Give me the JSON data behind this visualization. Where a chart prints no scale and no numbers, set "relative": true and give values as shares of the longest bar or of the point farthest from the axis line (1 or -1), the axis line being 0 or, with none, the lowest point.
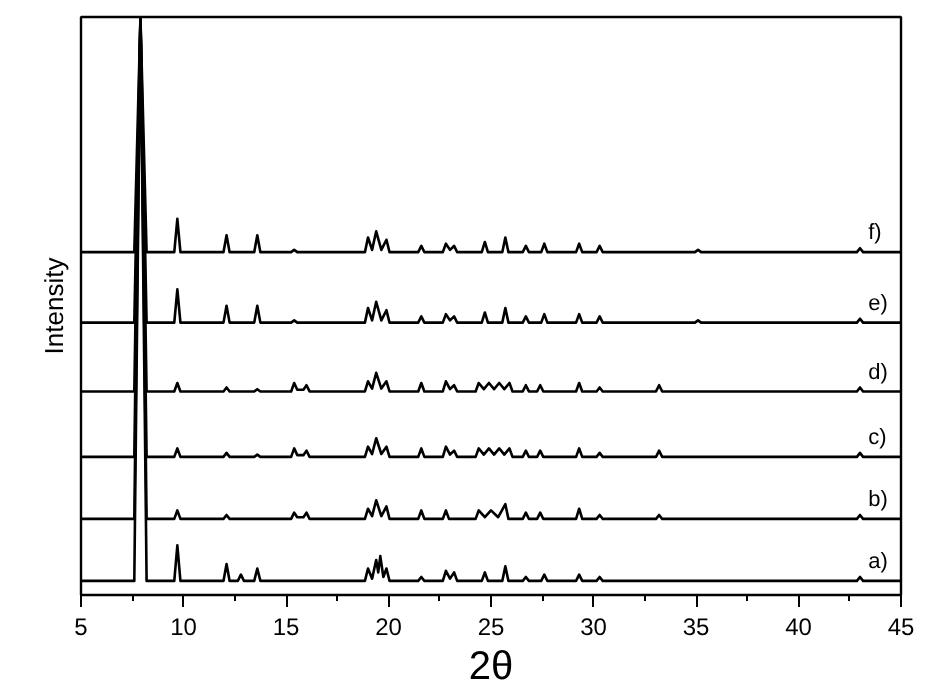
{
  "chart_data": {
    "type": "line",
    "relative": true,
    "xlabel": "2θ",
    "ylabel": "Intensity",
    "xlim": [
      5,
      45
    ],
    "xticks": [
      5,
      10,
      15,
      20,
      25,
      30,
      35,
      40,
      45
    ],
    "grid": false,
    "marker": "none",
    "line_style": "solid",
    "series": [
      {
        "name": "a)",
        "color": "#000000",
        "x": [
          5,
          7.6,
          7.9,
          8.2,
          9.55,
          9.7,
          9.85,
          11.95,
          12.1,
          12.25,
          12.65,
          12.8,
          12.95,
          13.45,
          13.6,
          13.75,
          18.85,
          19.0,
          19.2,
          19.4,
          19.5,
          19.6,
          19.75,
          19.9,
          20.05,
          21.45,
          21.6,
          21.75,
          22.65,
          22.8,
          23.0,
          23.2,
          23.35,
          24.55,
          24.7,
          24.85,
          25.55,
          25.7,
          25.85,
          26.55,
          26.7,
          26.85,
          27.45,
          27.6,
          27.75,
          29.15,
          29.3,
          29.45,
          30.15,
          30.3,
          30.45,
          42.85,
          43.0,
          43.15,
          45
        ],
        "values": [
          0,
          0,
          1.0,
          0,
          0,
          0.063,
          0,
          0,
          0.03,
          0,
          0,
          0.011,
          0,
          0,
          0.022,
          0,
          0,
          0.022,
          0.004,
          0.037,
          0.015,
          0.044,
          0.007,
          0.022,
          0,
          0,
          0.007,
          0,
          0,
          0.018,
          0.004,
          0.015,
          0,
          0,
          0.015,
          0,
          0,
          0.026,
          0,
          0,
          0.007,
          0,
          0,
          0.011,
          0,
          0,
          0.011,
          0,
          0,
          0.007,
          0,
          0,
          0.007,
          0,
          0
        ]
      },
      {
        "name": "b)",
        "color": "#000000",
        "x": [
          5,
          7.6,
          7.9,
          8.2,
          9.55,
          9.7,
          9.85,
          11.95,
          12.1,
          12.25,
          15.25,
          15.4,
          15.55,
          15.85,
          16.0,
          16.15,
          18.85,
          19.0,
          19.2,
          19.4,
          19.65,
          19.9,
          20.05,
          21.45,
          21.6,
          21.75,
          22.65,
          22.8,
          22.95,
          24.25,
          24.4,
          24.7,
          25.0,
          25.35,
          25.7,
          25.85,
          26.55,
          26.7,
          26.85,
          27.25,
          27.4,
          27.55,
          29.15,
          29.3,
          29.45,
          30.15,
          30.3,
          30.45,
          33.05,
          33.2,
          33.35,
          42.85,
          43.0,
          43.15,
          45
        ],
        "values": [
          0.11,
          0.11,
          1.0,
          0.11,
          0.11,
          0.125,
          0.11,
          0.11,
          0.117,
          0.11,
          0.11,
          0.121,
          0.113,
          0.113,
          0.121,
          0.11,
          0.11,
          0.128,
          0.115,
          0.143,
          0.115,
          0.132,
          0.11,
          0.11,
          0.125,
          0.11,
          0.11,
          0.125,
          0.11,
          0.11,
          0.125,
          0.113,
          0.125,
          0.113,
          0.136,
          0.11,
          0.11,
          0.121,
          0.11,
          0.11,
          0.121,
          0.11,
          0.11,
          0.128,
          0.11,
          0.11,
          0.117,
          0.11,
          0.11,
          0.117,
          0.11,
          0.11,
          0.117,
          0.11,
          0.11
        ]
      },
      {
        "name": "c)",
        "color": "#000000",
        "x": [
          5,
          7.6,
          7.9,
          8.2,
          9.55,
          9.7,
          9.85,
          11.95,
          12.1,
          12.25,
          13.45,
          13.6,
          13.75,
          15.25,
          15.4,
          15.55,
          15.85,
          16.0,
          16.15,
          18.85,
          19.0,
          19.2,
          19.4,
          19.65,
          19.9,
          20.05,
          21.45,
          21.6,
          21.75,
          22.65,
          22.8,
          23.0,
          23.2,
          23.35,
          24.25,
          24.4,
          24.65,
          24.9,
          25.15,
          25.4,
          25.65,
          25.9,
          26.05,
          26.55,
          26.7,
          26.85,
          27.25,
          27.4,
          27.55,
          29.15,
          29.3,
          29.45,
          30.15,
          30.3,
          30.45,
          33.05,
          33.2,
          33.35,
          42.85,
          43.0,
          43.15,
          45
        ],
        "values": [
          0.22,
          0.22,
          1.0,
          0.22,
          0.22,
          0.235,
          0.22,
          0.22,
          0.227,
          0.22,
          0.22,
          0.224,
          0.22,
          0.22,
          0.235,
          0.223,
          0.223,
          0.231,
          0.22,
          0.22,
          0.238,
          0.225,
          0.253,
          0.225,
          0.238,
          0.22,
          0.22,
          0.235,
          0.22,
          0.22,
          0.238,
          0.224,
          0.231,
          0.22,
          0.22,
          0.235,
          0.224,
          0.235,
          0.224,
          0.235,
          0.224,
          0.235,
          0.22,
          0.22,
          0.231,
          0.22,
          0.22,
          0.231,
          0.22,
          0.22,
          0.235,
          0.22,
          0.22,
          0.227,
          0.22,
          0.22,
          0.231,
          0.22,
          0.22,
          0.227,
          0.22,
          0.22
        ]
      },
      {
        "name": "d)",
        "color": "#000000",
        "x": [
          5,
          7.6,
          7.9,
          8.2,
          9.55,
          9.7,
          9.85,
          11.95,
          12.1,
          12.25,
          13.45,
          13.6,
          13.75,
          15.25,
          15.4,
          15.55,
          15.85,
          16.0,
          16.15,
          18.85,
          19.0,
          19.2,
          19.4,
          19.65,
          19.9,
          20.05,
          21.45,
          21.6,
          21.75,
          22.65,
          22.8,
          23.0,
          23.2,
          23.35,
          24.25,
          24.4,
          24.65,
          24.9,
          25.15,
          25.4,
          25.65,
          25.9,
          26.05,
          26.55,
          26.7,
          26.85,
          27.25,
          27.4,
          27.55,
          29.15,
          29.3,
          29.45,
          30.15,
          30.3,
          30.45,
          33.05,
          33.2,
          33.35,
          42.85,
          43.0,
          43.15,
          45
        ],
        "values": [
          0.336,
          0.336,
          1.0,
          0.336,
          0.336,
          0.351,
          0.336,
          0.336,
          0.343,
          0.336,
          0.336,
          0.34,
          0.336,
          0.336,
          0.351,
          0.339,
          0.339,
          0.347,
          0.336,
          0.336,
          0.354,
          0.341,
          0.369,
          0.341,
          0.354,
          0.336,
          0.336,
          0.351,
          0.336,
          0.336,
          0.354,
          0.34,
          0.347,
          0.336,
          0.336,
          0.351,
          0.34,
          0.351,
          0.34,
          0.351,
          0.34,
          0.351,
          0.336,
          0.336,
          0.347,
          0.336,
          0.336,
          0.347,
          0.336,
          0.336,
          0.351,
          0.336,
          0.336,
          0.343,
          0.336,
          0.336,
          0.347,
          0.336,
          0.336,
          0.343,
          0.336,
          0.336
        ]
      },
      {
        "name": "e)",
        "color": "#000000",
        "x": [
          5,
          7.6,
          7.9,
          8.2,
          9.55,
          9.7,
          9.85,
          11.95,
          12.1,
          12.25,
          13.45,
          13.6,
          13.75,
          15.25,
          15.4,
          15.55,
          18.85,
          19.0,
          19.2,
          19.4,
          19.65,
          19.9,
          20.05,
          21.45,
          21.6,
          21.75,
          22.65,
          22.8,
          23.0,
          23.2,
          23.35,
          24.55,
          24.7,
          24.85,
          25.55,
          25.7,
          25.85,
          26.55,
          26.7,
          26.85,
          27.45,
          27.6,
          27.75,
          29.15,
          29.3,
          29.45,
          30.15,
          30.3,
          30.45,
          34.95,
          35.1,
          35.25,
          42.85,
          43.0,
          43.15,
          45
        ],
        "values": [
          0.458,
          0.458,
          1.0,
          0.458,
          0.458,
          0.517,
          0.458,
          0.458,
          0.488,
          0.458,
          0.458,
          0.488,
          0.458,
          0.458,
          0.462,
          0.458,
          0.458,
          0.484,
          0.462,
          0.495,
          0.462,
          0.48,
          0.458,
          0.458,
          0.469,
          0.458,
          0.458,
          0.473,
          0.462,
          0.469,
          0.458,
          0.458,
          0.476,
          0.458,
          0.458,
          0.484,
          0.458,
          0.458,
          0.469,
          0.458,
          0.458,
          0.473,
          0.458,
          0.458,
          0.473,
          0.458,
          0.458,
          0.469,
          0.458,
          0.458,
          0.462,
          0.458,
          0.458,
          0.465,
          0.458,
          0.458
        ]
      },
      {
        "name": "f)",
        "color": "#000000",
        "x": [
          5,
          7.6,
          7.9,
          8.2,
          9.55,
          9.7,
          9.85,
          11.95,
          12.1,
          12.25,
          13.45,
          13.6,
          13.75,
          15.25,
          15.4,
          15.55,
          18.85,
          19.0,
          19.2,
          19.4,
          19.65,
          19.9,
          20.05,
          21.45,
          21.6,
          21.75,
          22.65,
          22.8,
          23.0,
          23.2,
          23.35,
          24.55,
          24.7,
          24.85,
          25.55,
          25.7,
          25.85,
          26.55,
          26.7,
          26.85,
          27.45,
          27.6,
          27.75,
          29.15,
          29.3,
          29.45,
          30.15,
          30.3,
          30.45,
          34.95,
          35.1,
          35.25,
          42.85,
          43.0,
          43.15,
          45
        ],
        "values": [
          0.583,
          0.583,
          1.0,
          0.583,
          0.583,
          0.642,
          0.583,
          0.583,
          0.613,
          0.583,
          0.583,
          0.613,
          0.583,
          0.583,
          0.587,
          0.583,
          0.583,
          0.609,
          0.587,
          0.62,
          0.587,
          0.605,
          0.583,
          0.583,
          0.594,
          0.583,
          0.583,
          0.598,
          0.587,
          0.594,
          0.583,
          0.583,
          0.601,
          0.583,
          0.583,
          0.609,
          0.583,
          0.583,
          0.594,
          0.583,
          0.583,
          0.598,
          0.583,
          0.583,
          0.598,
          0.583,
          0.583,
          0.594,
          0.583,
          0.583,
          0.587,
          0.583,
          0.583,
          0.59,
          0.583,
          0.583
        ]
      }
    ]
  }
}
